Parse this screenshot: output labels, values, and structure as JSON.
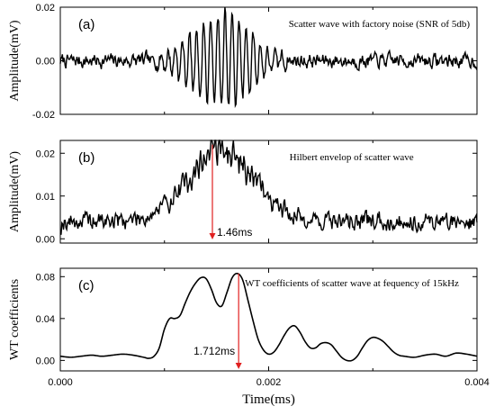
{
  "colors": {
    "trace": "#000000",
    "annotation": "#e02020",
    "axis": "#000000"
  },
  "chart_data": [
    {
      "type": "line",
      "panel_label": "(a)",
      "annotation_text": "Scatter wave with factory noise (SNR of 5db)",
      "ylabel": "Amplitude(mV)",
      "xlim": [
        0,
        0.004
      ],
      "ylim": [
        -0.02,
        0.02
      ],
      "yticks": [
        -0.02,
        0.0,
        0.02
      ],
      "ytick_labels": [
        "-0.02",
        "0.00",
        "0.02"
      ],
      "xtick_labels_shown": false,
      "signal": {
        "description_of_shape": "noisy oscillation, burst between ~0.0010 and ~0.0021 ms",
        "noise_amplitude": 0.003,
        "burst_center": 0.00155,
        "burst_width": 0.0004,
        "burst_peak": 0.018,
        "oscillation_period": 6.8e-05
      }
    },
    {
      "type": "line",
      "panel_label": "(b)",
      "annotation_text": "Hilbert envelop of scatter wave",
      "ylabel": "Amplitude(mV)",
      "xlim": [
        0,
        0.004
      ],
      "ylim": [
        -0.001,
        0.023
      ],
      "yticks": [
        0.0,
        0.01,
        0.02
      ],
      "ytick_labels": [
        "0.00",
        "0.01",
        "0.02"
      ],
      "xtick_labels_shown": false,
      "marker": {
        "x": 0.00146,
        "y": 0.022,
        "label": "1.46ms"
      },
      "signal": {
        "noise_amplitude": 0.004,
        "burst_center": 0.00155,
        "burst_width": 0.00045,
        "burst_peak": 0.018,
        "peak_x": 0.00146,
        "peak_y": 0.022
      }
    },
    {
      "type": "line",
      "panel_label": "(c)",
      "annotation_text": "WT coefficients of scatter wave at fequency of 15kHz",
      "ylabel": "WT coefficients",
      "xlabel": "Time(ms)",
      "xlim": [
        0,
        0.004
      ],
      "ylim": [
        -0.01,
        0.088
      ],
      "yticks": [
        0.0,
        0.04,
        0.08
      ],
      "ytick_labels": [
        "0.00",
        "0.04",
        "0.08"
      ],
      "xticks": [
        0.0,
        0.002,
        0.004
      ],
      "xtick_labels": [
        "0.000",
        "0.002",
        "0.004"
      ],
      "marker": {
        "x": 0.001712,
        "y": 0.083,
        "label": "1.712ms"
      },
      "points": {
        "x": [
          0,
          0.0001,
          0.0002,
          0.0003,
          0.0004,
          0.0005,
          0.0006,
          0.0007,
          0.0008,
          0.00085,
          0.0009,
          0.00095,
          0.001,
          0.00105,
          0.0011,
          0.00115,
          0.0012,
          0.00125,
          0.0013,
          0.00135,
          0.0014,
          0.00145,
          0.0015,
          0.00155,
          0.0016,
          0.00165,
          0.0017,
          0.00175,
          0.0018,
          0.00185,
          0.0019,
          0.00195,
          0.002,
          0.00205,
          0.0021,
          0.00215,
          0.0022,
          0.00225,
          0.0023,
          0.00235,
          0.0024,
          0.00245,
          0.0025,
          0.00255,
          0.0026,
          0.00265,
          0.0027,
          0.00275,
          0.0028,
          0.00285,
          0.0029,
          0.00295,
          0.003,
          0.00305,
          0.0031,
          0.00315,
          0.0032,
          0.00325,
          0.0033,
          0.0034,
          0.0035,
          0.0036,
          0.0037,
          0.0038,
          0.0039,
          0.004
        ],
        "y": [
          0.004,
          0.003,
          0.004,
          0.005,
          0.004,
          0.005,
          0.006,
          0.005,
          0.003,
          0.002,
          0.004,
          0.012,
          0.03,
          0.04,
          0.04,
          0.043,
          0.055,
          0.066,
          0.074,
          0.079,
          0.078,
          0.068,
          0.055,
          0.052,
          0.065,
          0.079,
          0.083,
          0.077,
          0.058,
          0.038,
          0.02,
          0.01,
          0.006,
          0.008,
          0.015,
          0.024,
          0.031,
          0.033,
          0.027,
          0.018,
          0.012,
          0.012,
          0.016,
          0.017,
          0.015,
          0.009,
          0.003,
          0.0,
          0.0,
          0.004,
          0.012,
          0.019,
          0.022,
          0.021,
          0.018,
          0.013,
          0.008,
          0.005,
          0.004,
          0.003,
          0.005,
          0.006,
          0.004,
          0.007,
          0.006,
          0.004
        ]
      }
    }
  ]
}
